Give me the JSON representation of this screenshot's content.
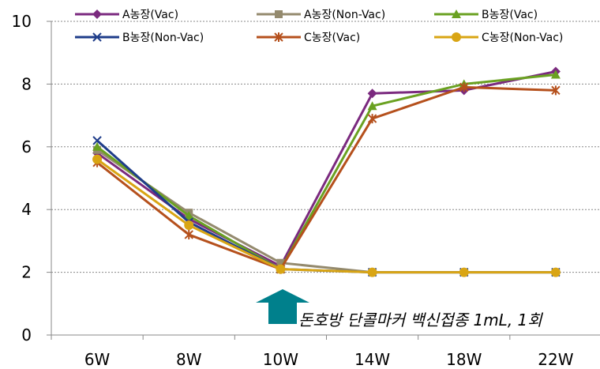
{
  "chart_data": {
    "type": "line",
    "categories": [
      "6W",
      "8W",
      "10W",
      "14W",
      "18W",
      "22W"
    ],
    "ylim": [
      0,
      10
    ],
    "yticks": [
      "0",
      "2",
      "4",
      "6",
      "8",
      "10"
    ],
    "grid": "horizontal-dotted",
    "legend_position": "top",
    "series": [
      {
        "name": "A농장(Vac)",
        "color": "#7B2A7F",
        "marker": "diamond",
        "values": [
          5.8,
          3.7,
          2.2,
          7.7,
          7.8,
          8.4
        ]
      },
      {
        "name": "A농장(Non-Vac)",
        "color": "#948A6E",
        "marker": "square",
        "values": [
          5.9,
          3.9,
          2.3,
          2.0,
          2.0,
          2.0
        ]
      },
      {
        "name": "B농장(Vac)",
        "color": "#6AA121",
        "marker": "triangle",
        "values": [
          6.0,
          3.8,
          2.1,
          7.3,
          8.0,
          8.3
        ]
      },
      {
        "name": "B농장(Non-Vac)",
        "color": "#1F3D8A",
        "marker": "x",
        "values": [
          6.2,
          3.6,
          2.1,
          2.0,
          2.0,
          2.0
        ]
      },
      {
        "name": "C농장(Vac)",
        "color": "#B5501C",
        "marker": "star",
        "values": [
          5.5,
          3.2,
          2.1,
          6.9,
          7.9,
          7.8
        ]
      },
      {
        "name": "C농장(Non-Vac)",
        "color": "#D9A514",
        "marker": "circle",
        "values": [
          5.6,
          3.5,
          2.1,
          2.0,
          2.0,
          2.0
        ]
      }
    ],
    "annotation": {
      "text": "돈호방 단콜마커 백신접종 1mL, 1회",
      "at_category": "10W",
      "arrow_color": "#00808C"
    }
  }
}
